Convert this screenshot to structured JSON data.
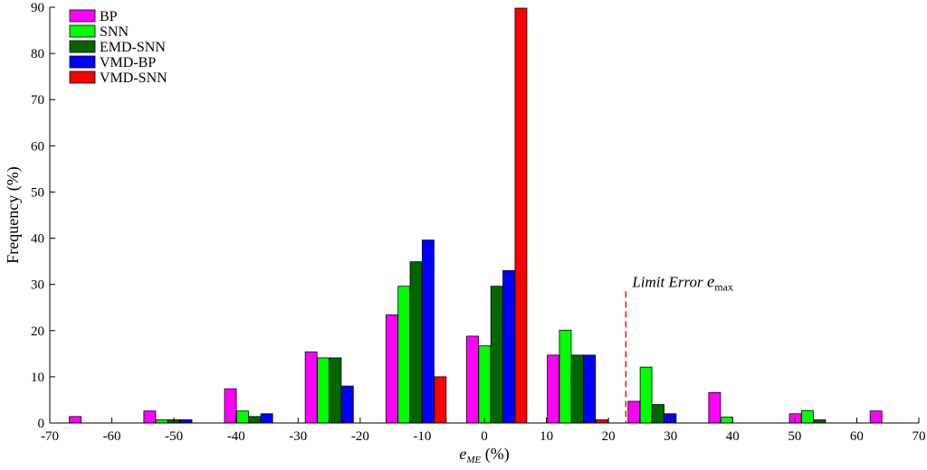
{
  "chart_data": {
    "type": "bar",
    "xlabel_main": "e",
    "xlabel_sub": "ME",
    "xlabel_unit": " (%)",
    "ylabel": "Frequency (%)",
    "xlim": [
      -70,
      70
    ],
    "ylim": [
      0,
      90
    ],
    "xticks": [
      -70,
      -60,
      -50,
      -40,
      -30,
      -20,
      -10,
      0,
      10,
      20,
      30,
      40,
      50,
      60,
      70
    ],
    "yticks": [
      0,
      10,
      20,
      30,
      40,
      50,
      60,
      70,
      80,
      90
    ],
    "bin_centers": [
      -62,
      -50,
      -37,
      -24,
      -11,
      2,
      15,
      28,
      41,
      54,
      67
    ],
    "bar_width": 1.9,
    "series": [
      {
        "name": "BP",
        "color": "#ff00ff",
        "offset": -3.9,
        "values": [
          1.4,
          2.6,
          7.4,
          15.4,
          23.4,
          18.8,
          14.7,
          4.7,
          6.6,
          2.0,
          2.6
        ]
      },
      {
        "name": "SNN",
        "color": "#00ff00",
        "offset": -1.95,
        "values": [
          0,
          0.7,
          2.6,
          14.1,
          29.6,
          16.7,
          20.1,
          12.1,
          1.3,
          2.7,
          0
        ]
      },
      {
        "name": "EMD-SNN",
        "color": "#006600",
        "offset": 0,
        "values": [
          0,
          0.7,
          1.4,
          14.1,
          34.9,
          29.6,
          14.7,
          4.0,
          0,
          0.7,
          0
        ]
      },
      {
        "name": "VMD-BP",
        "color": "#0000ff",
        "offset": 1.95,
        "values": [
          0,
          0.7,
          2.0,
          8.0,
          39.6,
          33.0,
          14.7,
          2.0,
          0,
          0,
          0
        ]
      },
      {
        "name": "VMD-SNN",
        "color": "#ff0000",
        "offset": 3.9,
        "values": [
          0,
          0,
          0,
          0,
          10.0,
          89.8,
          0.7,
          0,
          0,
          0,
          0
        ]
      }
    ],
    "annotation": {
      "text": "Limit Error ",
      "var": "e",
      "sub": "max",
      "x": 22.8,
      "y_top": 28.5,
      "color": "#ff0000"
    },
    "legend_position": "top-left",
    "grid": false
  }
}
